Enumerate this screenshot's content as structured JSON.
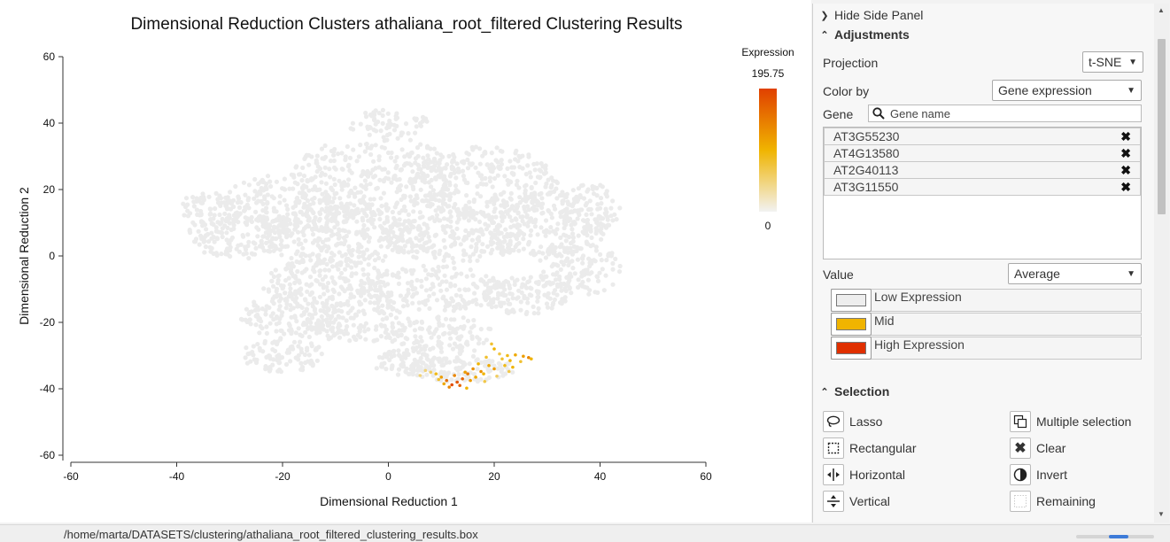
{
  "chart_data": {
    "type": "scatter",
    "title": "Dimensional Reduction Clusters athaliana_root_filtered Clustering Results",
    "xlabel": "Dimensional Reduction 1",
    "ylabel": "Dimensional Reduction 2",
    "xlim": [
      -60,
      60
    ],
    "ylim": [
      -60,
      60
    ],
    "xticks": [
      -60,
      -40,
      -20,
      0,
      20,
      40,
      60
    ],
    "yticks": [
      60,
      40,
      20,
      0,
      -20,
      -40,
      -60
    ],
    "grid": false,
    "colorbar": {
      "title": "Expression",
      "max": "195.75",
      "min": "0",
      "colors": [
        "#f2f2f2",
        "#f0b400",
        "#e04000"
      ]
    },
    "base_cluster_color": "#ebebeb",
    "highlighted_points": [
      {
        "x": 19.5,
        "y": -26.5,
        "v": 0.4
      },
      {
        "x": 20.0,
        "y": -28.0,
        "v": 0.5
      },
      {
        "x": 21.0,
        "y": -29.5,
        "v": 0.35
      },
      {
        "x": 22.5,
        "y": -30.0,
        "v": 0.45
      },
      {
        "x": 24.0,
        "y": -29.8,
        "v": 0.55
      },
      {
        "x": 25.5,
        "y": -30.2,
        "v": 0.6
      },
      {
        "x": 26.5,
        "y": -30.6,
        "v": 0.7
      },
      {
        "x": 27.0,
        "y": -31.0,
        "v": 0.5
      },
      {
        "x": 18.5,
        "y": -30.5,
        "v": 0.4
      },
      {
        "x": 17.0,
        "y": -32.5,
        "v": 0.5
      },
      {
        "x": 16.0,
        "y": -34.0,
        "v": 0.65
      },
      {
        "x": 15.0,
        "y": -35.5,
        "v": 0.75
      },
      {
        "x": 14.0,
        "y": -37.0,
        "v": 0.85
      },
      {
        "x": 13.0,
        "y": -38.0,
        "v": 0.9
      },
      {
        "x": 12.0,
        "y": -38.8,
        "v": 0.95
      },
      {
        "x": 11.0,
        "y": -37.5,
        "v": 0.8
      },
      {
        "x": 10.0,
        "y": -36.5,
        "v": 0.6
      },
      {
        "x": 9.0,
        "y": -35.5,
        "v": 0.45
      },
      {
        "x": 8.0,
        "y": -35.0,
        "v": 0.3
      },
      {
        "x": 7.0,
        "y": -34.5,
        "v": 0.25
      },
      {
        "x": 12.5,
        "y": -36.0,
        "v": 0.7
      },
      {
        "x": 14.5,
        "y": -35.0,
        "v": 0.6
      },
      {
        "x": 16.5,
        "y": -36.5,
        "v": 0.55
      },
      {
        "x": 18.0,
        "y": -35.5,
        "v": 0.5
      },
      {
        "x": 20.0,
        "y": -34.0,
        "v": 0.6
      },
      {
        "x": 22.0,
        "y": -33.0,
        "v": 0.45
      },
      {
        "x": 23.0,
        "y": -31.5,
        "v": 0.5
      },
      {
        "x": 21.5,
        "y": -31.0,
        "v": 0.4
      },
      {
        "x": 19.0,
        "y": -33.0,
        "v": 0.55
      },
      {
        "x": 17.5,
        "y": -34.8,
        "v": 0.65
      },
      {
        "x": 13.5,
        "y": -39.0,
        "v": 0.85
      },
      {
        "x": 11.5,
        "y": -39.5,
        "v": 0.7
      },
      {
        "x": 10.5,
        "y": -38.5,
        "v": 0.55
      },
      {
        "x": 15.5,
        "y": -37.5,
        "v": 0.6
      },
      {
        "x": 9.5,
        "y": -37.2,
        "v": 0.4
      },
      {
        "x": 6.0,
        "y": -36.0,
        "v": 0.25
      },
      {
        "x": 23.5,
        "y": -33.5,
        "v": 0.5
      },
      {
        "x": 22.8,
        "y": -34.8,
        "v": 0.35
      },
      {
        "x": 25.0,
        "y": -31.8,
        "v": 0.4
      },
      {
        "x": 20.5,
        "y": -36.2,
        "v": 0.3
      },
      {
        "x": 18.2,
        "y": -37.8,
        "v": 0.35
      },
      {
        "x": 14.8,
        "y": -39.8,
        "v": 0.5
      }
    ]
  },
  "side_panel": {
    "hide_label": "Hide Side Panel",
    "adjustments_title": "Adjustments",
    "projection_label": "Projection",
    "projection_value": "t-SNE",
    "color_by_label": "Color by",
    "color_by_value": "Gene expression",
    "gene_label": "Gene",
    "gene_placeholder": "Gene name",
    "genes": [
      "AT3G55230",
      "AT4G13580",
      "AT2G40113",
      "AT3G11550"
    ],
    "value_label": "Value",
    "value_value": "Average",
    "legend": [
      {
        "label": "Low Expression",
        "color": "#eeeeee"
      },
      {
        "label": "Mid",
        "color": "#f0b400"
      },
      {
        "label": "High Expression",
        "color": "#e03000"
      }
    ],
    "selection_title": "Selection",
    "tools_left": [
      "Lasso",
      "Rectangular",
      "Horizontal",
      "Vertical"
    ],
    "tools_right": [
      "Multiple selection",
      "Clear",
      "Invert",
      "Remaining"
    ]
  },
  "status_bar": {
    "path": "/home/marta/DATASETS/clustering/athaliana_root_filtered_clustering_results.box",
    "progress": 0.25
  }
}
